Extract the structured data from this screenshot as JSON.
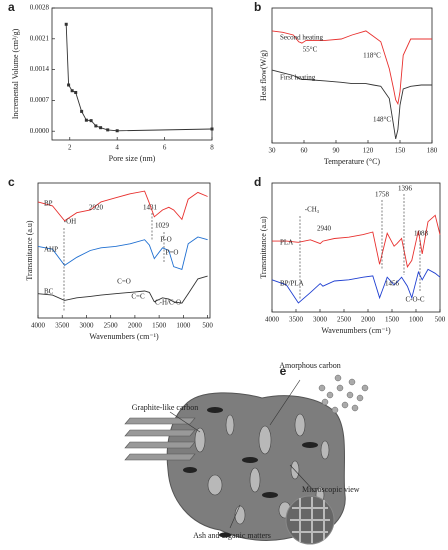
{
  "chart_data": [
    {
      "panel": "a",
      "type": "line",
      "x_label": "Pore size (nm)",
      "y_label": "Incremental Volume (cm³/g)",
      "xlim": [
        1.25,
        8
      ],
      "xticks": [
        2,
        4,
        6,
        8
      ],
      "ylim": [
        -0.0002,
        0.0028
      ],
      "yticks": [
        {
          "value": 0,
          "label": "0.0000"
        },
        {
          "value": 0.0007,
          "label": "0.0007"
        },
        {
          "value": 0.0014,
          "label": "0.0014"
        },
        {
          "value": 0.0021,
          "label": "0.0021"
        },
        {
          "value": 0.0028,
          "label": "0.0028"
        }
      ],
      "x": [
        1.85,
        1.95,
        2.1,
        2.25,
        2.5,
        2.7,
        2.9,
        3.1,
        3.3,
        3.6,
        4.0,
        8
      ],
      "series": [
        {
          "color": "#333333",
          "values": [
            0.00243,
            0.00105,
            0.00092,
            0.00088,
            0.00045,
            0.00025,
            0.00024,
            0.00012,
            8e-05,
            3e-05,
            1e-05,
            5e-05
          ]
        }
      ]
    },
    {
      "panel": "b",
      "type": "line",
      "x_label": "Temperature (°C)",
      "y_label": "Heat flow(W/g)",
      "xlim": [
        30,
        180
      ],
      "xticks": [
        30,
        60,
        90,
        120,
        150,
        180
      ],
      "ylim": [
        0,
        10
      ],
      "x": [
        30,
        40,
        50,
        55,
        58,
        62,
        80,
        95,
        105,
        118,
        125,
        132,
        140,
        144,
        146,
        148,
        150,
        153,
        160,
        170,
        180
      ],
      "series": [
        {
          "name": "Second heating",
          "color": "#e8312f",
          "values": [
            8.3,
            8.2,
            8.0,
            7.5,
            7.4,
            7.6,
            7.6,
            7.7,
            8.0,
            8.3,
            7.9,
            7.5,
            5.5,
            4.0,
            3.2,
            2.9,
            3.8,
            6.5,
            7.7,
            7.7,
            7.7
          ]
        },
        {
          "name": "First heating",
          "color": "#333333",
          "values": [
            5.4,
            5.2,
            5.0,
            4.8,
            4.7,
            4.7,
            4.6,
            4.5,
            4.4,
            4.4,
            4.3,
            4.2,
            3.3,
            1.3,
            0.3,
            1.0,
            2.8,
            4.0,
            4.2,
            4.3,
            4.3
          ]
        }
      ],
      "annotations": [
        "55°C",
        "118°C",
        "148°C"
      ]
    },
    {
      "panel": "c",
      "type": "line",
      "x_label": "Wavenumbers (cm⁻¹)",
      "y_label": "Transmitance (a.u)",
      "xlim": [
        4000,
        450
      ],
      "xticks": [
        4000,
        3500,
        3000,
        2500,
        2000,
        1500,
        1000,
        500
      ],
      "ylim": [
        0,
        10
      ],
      "x": [
        4000,
        3700,
        3450,
        3200,
        2920,
        2700,
        2400,
        2100,
        1800,
        1700,
        1600,
        1431,
        1300,
        1200,
        1029,
        900,
        700,
        500
      ],
      "series": [
        {
          "name": "BP",
          "color": "#e8312f",
          "values": [
            8.6,
            8.3,
            7.2,
            7.8,
            8.0,
            8.6,
            8.9,
            9.2,
            9.4,
            8.5,
            7.5,
            8.0,
            8.2,
            8.0,
            7.3,
            8.8,
            9.3,
            9.0
          ]
        },
        {
          "name": "AHP",
          "color": "#1f6fd1",
          "values": [
            5.3,
            5.1,
            3.9,
            4.5,
            5.0,
            5.2,
            5.3,
            5.5,
            5.8,
            5.4,
            4.4,
            5.2,
            5.0,
            3.8,
            3.6,
            5.5,
            6.0,
            5.8
          ]
        },
        {
          "name": "BC",
          "color": "#333333",
          "values": [
            1.8,
            1.7,
            1.3,
            1.5,
            1.6,
            1.7,
            1.8,
            1.9,
            2.0,
            1.9,
            1.2,
            1.5,
            1.4,
            1.2,
            1.1,
            1.8,
            2.9,
            3.1
          ]
        }
      ],
      "annotations": [
        "-OH",
        "2920",
        "1431",
        "1029",
        "P-O",
        "P=O",
        "C=O",
        "C=C",
        "C-H/C-O"
      ]
    },
    {
      "panel": "d",
      "type": "line",
      "x_label": "Wavenumbers (cm⁻¹)",
      "y_label": "Transmittance (a.u)",
      "xlim": [
        4000,
        500
      ],
      "xticks": [
        4000,
        3500,
        3000,
        2500,
        2000,
        1500,
        1000,
        500
      ],
      "ylim": [
        0,
        10
      ],
      "x": [
        4000,
        3700,
        3450,
        3200,
        2995,
        2940,
        2700,
        2400,
        2100,
        1900,
        1758,
        1600,
        1456,
        1396,
        1300,
        1180,
        1088,
        950,
        870,
        750,
        600,
        500
      ],
      "series": [
        {
          "name": "PLA",
          "color": "#e8312f",
          "values": [
            5.5,
            5.5,
            5.4,
            5.6,
            5.3,
            5.5,
            5.7,
            5.8,
            6.0,
            6.2,
            3.7,
            6.1,
            5.1,
            5.3,
            5.7,
            3.5,
            4.0,
            6.3,
            4.5,
            7.0,
            7.5,
            6.0
          ]
        },
        {
          "name": "BP/PLA",
          "color": "#1f3fd1",
          "values": [
            2.5,
            2.1,
            0.7,
            1.5,
            2.2,
            2.0,
            2.4,
            2.5,
            2.7,
            2.8,
            1.1,
            2.7,
            2.1,
            2.3,
            2.7,
            2.0,
            1.1,
            3.1,
            2.5,
            3.3,
            3.0,
            2.7
          ]
        }
      ],
      "annotations": [
        "-CH₃",
        "2940",
        "1758",
        "1456",
        "1396",
        "1088",
        "C-O-C"
      ]
    }
  ],
  "diagram": {
    "panel": "e",
    "labels": [
      "Amorphous carbon",
      "Graphite-like carbon",
      "Microscopic view",
      "Ash and organic matters"
    ]
  }
}
